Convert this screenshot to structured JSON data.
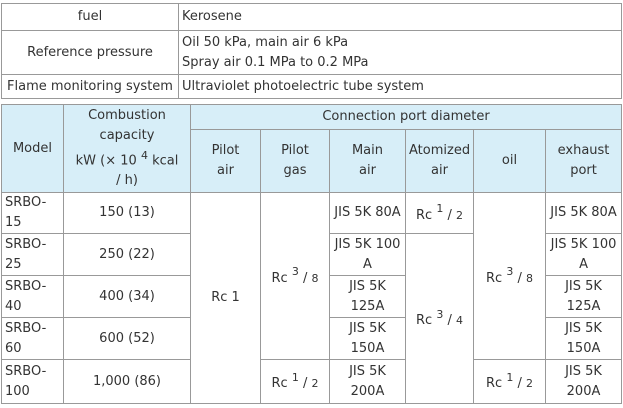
{
  "info_rows": [
    {
      "label": "fuel",
      "value_lines": [
        "Kerosene"
      ]
    },
    {
      "label": "Reference pressure",
      "value_lines": [
        "Oil 50 kPa, main air 6 kPa",
        "Spray air 0.1 MPa to 0.2 MPa"
      ]
    },
    {
      "label": "Flame monitoring system",
      "value_lines": [
        "Ultraviolet photoelectric tube system"
      ]
    }
  ],
  "spec_header": {
    "model": "Model",
    "capacity_line1": "Combustion",
    "capacity_line2": "capacity",
    "capacity_unit_pre": "kW (× 10",
    "capacity_unit_exp": "4",
    "capacity_unit_post": " kcal",
    "capacity_unit_tail": "/ h)",
    "connection": "Connection port diameter",
    "pilot_air_1": "Pilot",
    "pilot_air_2": "air",
    "pilot_gas_1": "Pilot",
    "pilot_gas_2": "gas",
    "main_air_1": "Main",
    "main_air_2": "air",
    "atomized_air_1": "Atomized",
    "atomized_air_2": "air",
    "oil": "oil",
    "exhaust_1": "exhaust",
    "exhaust_2": "port"
  },
  "rows": [
    {
      "model": "SRBO-15",
      "capacity": "150 (13)",
      "main_air": [
        "JIS 5K 80A"
      ],
      "exhaust": [
        "JIS 5K 80A"
      ]
    },
    {
      "model": "SRBO-25",
      "capacity": "250 (22)",
      "main_air": [
        "JIS 5K 100",
        "A"
      ],
      "exhaust": [
        "JIS 5K 100",
        "A"
      ]
    },
    {
      "model": "SRBO-40",
      "capacity": "400 (34)",
      "main_air": [
        "JIS 5K",
        "125A"
      ],
      "exhaust": [
        "JIS 5K",
        "125A"
      ]
    },
    {
      "model": "SRBO-60",
      "capacity": "600 (52)",
      "main_air": [
        "JIS 5K",
        "150A"
      ],
      "exhaust": [
        "JIS 5K",
        "150A"
      ]
    },
    {
      "model": [
        "SRBO-",
        "100"
      ],
      "capacity": "1,000 (86)",
      "main_air": [
        "JIS 5K",
        "200A"
      ],
      "exhaust": [
        "JIS 5K",
        "200A"
      ]
    }
  ],
  "merged": {
    "pilot_air": "Rc 1",
    "pilot_gas_a": {
      "prefix": "Rc ",
      "num": "3",
      "den": "8"
    },
    "pilot_gas_b": {
      "prefix": "Rc ",
      "num": "1",
      "den": "2"
    },
    "atomized_a": {
      "prefix": "Rc ",
      "num": "1",
      "den": "2"
    },
    "atomized_b": {
      "prefix": "Rc ",
      "num": "3",
      "den": "4"
    },
    "oil_a": {
      "prefix": "Rc ",
      "num": "3",
      "den": "8"
    },
    "oil_b": {
      "prefix": "Rc ",
      "num": "1",
      "den": "2"
    }
  }
}
